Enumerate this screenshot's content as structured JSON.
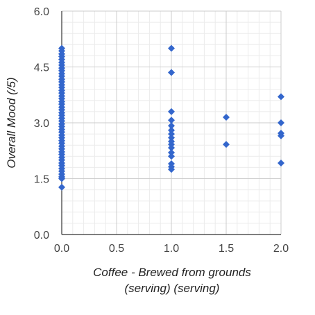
{
  "chart_data": {
    "type": "scatter",
    "title": "",
    "xlabel_lines": [
      "Coffee - Brewed from grounds",
      "(serving) (serving)"
    ],
    "ylabel": "Overall Mood (/5)",
    "xlim": [
      0,
      2.0
    ],
    "ylim": [
      0,
      6.0
    ],
    "x_ticks": [
      "0.0",
      "0.5",
      "1.0",
      "1.5",
      "2.0"
    ],
    "y_ticks": [
      "0.0",
      "1.5",
      "3.0",
      "4.5",
      "6.0"
    ],
    "grid": true,
    "legend": "none",
    "colors": {
      "marker": "#3366cc",
      "major_grid": "#cccccc",
      "minor_grid": "#ebebeb",
      "axis": "#333333"
    },
    "points": [
      {
        "x": 0,
        "y": 5.0
      },
      {
        "x": 0,
        "y": 4.93
      },
      {
        "x": 0,
        "y": 4.85
      },
      {
        "x": 0,
        "y": 4.78
      },
      {
        "x": 0,
        "y": 4.7
      },
      {
        "x": 0,
        "y": 4.62
      },
      {
        "x": 0,
        "y": 4.55
      },
      {
        "x": 0,
        "y": 4.47
      },
      {
        "x": 0,
        "y": 4.4
      },
      {
        "x": 0,
        "y": 4.32
      },
      {
        "x": 0,
        "y": 4.25
      },
      {
        "x": 0,
        "y": 4.17
      },
      {
        "x": 0,
        "y": 4.1
      },
      {
        "x": 0,
        "y": 4.02
      },
      {
        "x": 0,
        "y": 3.95
      },
      {
        "x": 0,
        "y": 3.87
      },
      {
        "x": 0,
        "y": 3.8
      },
      {
        "x": 0,
        "y": 3.72
      },
      {
        "x": 0,
        "y": 3.65
      },
      {
        "x": 0,
        "y": 3.57
      },
      {
        "x": 0,
        "y": 3.5
      },
      {
        "x": 0,
        "y": 3.42
      },
      {
        "x": 0,
        "y": 3.35
      },
      {
        "x": 0,
        "y": 3.27
      },
      {
        "x": 0,
        "y": 3.2
      },
      {
        "x": 0,
        "y": 3.12
      },
      {
        "x": 0,
        "y": 3.05
      },
      {
        "x": 0,
        "y": 2.97
      },
      {
        "x": 0,
        "y": 2.9
      },
      {
        "x": 0,
        "y": 2.82
      },
      {
        "x": 0,
        "y": 2.75
      },
      {
        "x": 0,
        "y": 2.67
      },
      {
        "x": 0,
        "y": 2.6
      },
      {
        "x": 0,
        "y": 2.52
      },
      {
        "x": 0,
        "y": 2.45
      },
      {
        "x": 0,
        "y": 2.37
      },
      {
        "x": 0,
        "y": 2.3
      },
      {
        "x": 0,
        "y": 2.22
      },
      {
        "x": 0,
        "y": 2.15
      },
      {
        "x": 0,
        "y": 2.07
      },
      {
        "x": 0,
        "y": 2.0
      },
      {
        "x": 0,
        "y": 1.92
      },
      {
        "x": 0,
        "y": 1.85
      },
      {
        "x": 0,
        "y": 1.77
      },
      {
        "x": 0,
        "y": 1.7
      },
      {
        "x": 0,
        "y": 1.62
      },
      {
        "x": 0,
        "y": 1.55
      },
      {
        "x": 0,
        "y": 1.5
      },
      {
        "x": 0,
        "y": 1.27
      },
      {
        "x": 1.0,
        "y": 5.0
      },
      {
        "x": 1.0,
        "y": 4.35
      },
      {
        "x": 1.0,
        "y": 3.3
      },
      {
        "x": 1.0,
        "y": 3.07
      },
      {
        "x": 1.0,
        "y": 2.92
      },
      {
        "x": 1.0,
        "y": 2.8
      },
      {
        "x": 1.0,
        "y": 2.7
      },
      {
        "x": 1.0,
        "y": 2.6
      },
      {
        "x": 1.0,
        "y": 2.5
      },
      {
        "x": 1.0,
        "y": 2.42
      },
      {
        "x": 1.0,
        "y": 2.33
      },
      {
        "x": 1.0,
        "y": 2.2
      },
      {
        "x": 1.0,
        "y": 2.1
      },
      {
        "x": 1.0,
        "y": 1.9
      },
      {
        "x": 1.0,
        "y": 1.82
      },
      {
        "x": 1.0,
        "y": 1.75
      },
      {
        "x": 1.5,
        "y": 3.15
      },
      {
        "x": 1.5,
        "y": 2.42
      },
      {
        "x": 2.0,
        "y": 3.7
      },
      {
        "x": 2.0,
        "y": 3.0
      },
      {
        "x": 2.0,
        "y": 2.72
      },
      {
        "x": 2.0,
        "y": 2.65
      },
      {
        "x": 2.0,
        "y": 1.92
      }
    ]
  }
}
